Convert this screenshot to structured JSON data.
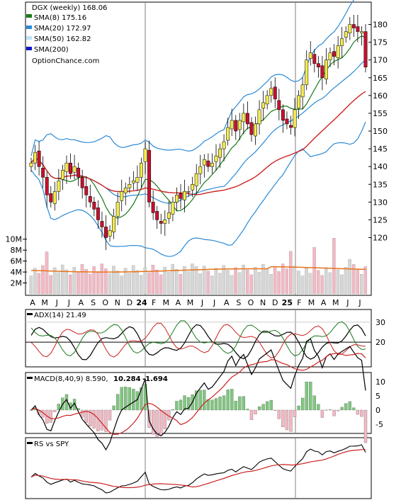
{
  "chart_data": {
    "type": "candlestick",
    "title": "DGX (weekly) 168.06",
    "watermark": "OptionChance.com",
    "legend": [
      {
        "label": "SMA(8) 175.16",
        "color": "#1a7a1a"
      },
      {
        "label": "SMA(20) 172.97",
        "color": "#2b8ad6"
      },
      {
        "label": "SMA(50) 162.82",
        "color": "#bde3f7"
      },
      {
        "label": "SMA(200)",
        "color": "#1515c8"
      }
    ],
    "x_labels": [
      "A",
      "M",
      "J",
      "J",
      "A",
      "S",
      "O",
      "N",
      "D",
      "24",
      "F",
      "M",
      "A",
      "M",
      "J",
      "J",
      "A",
      "S",
      "O",
      "N",
      "D",
      "25",
      "F",
      "M",
      "A",
      "M",
      "J",
      "J"
    ],
    "price_axis": {
      "ticks": [
        120,
        125,
        130,
        135,
        140,
        145,
        150,
        155,
        160,
        165,
        170,
        175,
        180
      ],
      "range": [
        118,
        184
      ]
    },
    "volume_axis": {
      "labels": [
        "10M",
        "8M",
        "6M",
        "4M",
        "2M"
      ],
      "values": [
        10,
        8,
        6,
        4,
        2
      ],
      "range": [
        0,
        11
      ]
    },
    "price_weekly_close_estimate": [
      141,
      144,
      140,
      137,
      132,
      130,
      133,
      136,
      139,
      141,
      138,
      140,
      137,
      134,
      132,
      130,
      128,
      125,
      123,
      120,
      122,
      126,
      130,
      133,
      134,
      135,
      136,
      137,
      141,
      145,
      130,
      127,
      125,
      124,
      125,
      127,
      130,
      132,
      131,
      133,
      133,
      135,
      138,
      140,
      142,
      140,
      141,
      143,
      145,
      147,
      151,
      153,
      150,
      153,
      155,
      152,
      149,
      152,
      156,
      158,
      160,
      162,
      159,
      156,
      153,
      152,
      151,
      156,
      160,
      163,
      170,
      172,
      169,
      168,
      165,
      170,
      172,
      171,
      174,
      176,
      178,
      180,
      179,
      178,
      178,
      168
    ],
    "adx_panel": {
      "title": "ADX(14) 21.49",
      "ticks": [
        30,
        20
      ],
      "range": [
        8,
        36
      ],
      "adx": 21.49
    },
    "macd_panel": {
      "title_prefix": "MACD(8,40,9) 8.590,",
      "signal_value": "10.284",
      "hist_value": "-1.694",
      "ticks": [
        10,
        5,
        0,
        -5
      ],
      "range": [
        -8,
        13
      ]
    },
    "rs_panel": {
      "title": "RS vs SPY"
    },
    "colors": {
      "up_candle": "#f3e94e",
      "down_candle": "#c8102e",
      "upper_band": "#2b8ad6",
      "sma50": "#cc2222",
      "volume_bar_up": "#d6d6d6",
      "volume_bar_down": "#f4b8c4",
      "volume_avg": "#e8731a",
      "adx_line": "#000000",
      "plus_di": "#1a7a1a",
      "minus_di": "#cc2222",
      "macd_line": "#000000",
      "macd_signal": "#cc2222",
      "macd_hist_up": "#7ec87e",
      "macd_hist_down": "#f4b8c4",
      "rs_line": "#000000",
      "rs_ma": "#cc2222"
    }
  }
}
